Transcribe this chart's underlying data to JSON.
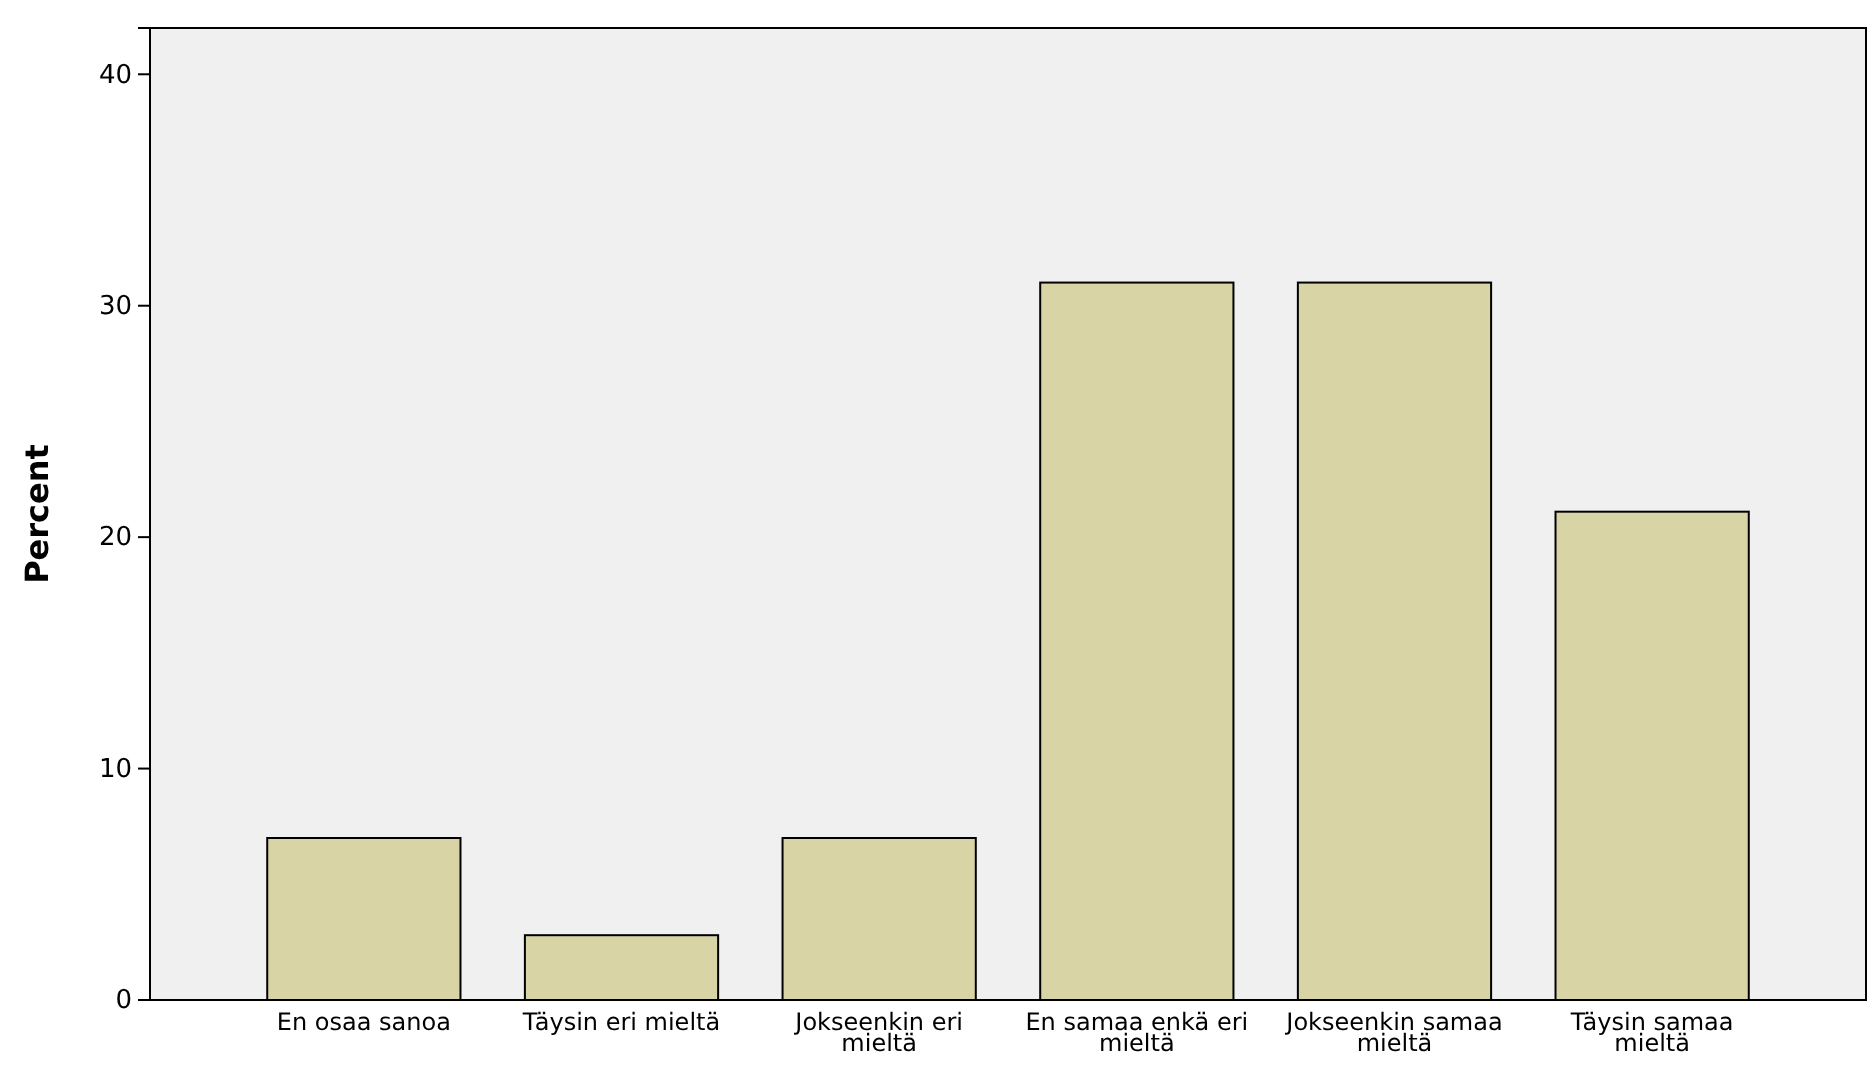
{
  "chart_data": {
    "type": "bar",
    "ylabel": "Percent",
    "categories": [
      "En osaa sanoa",
      "Täysin eri mieltä",
      "Jokseenkin eri mieltä",
      "En samaa enkä eri mieltä",
      "Jokseenkin samaa mieltä",
      "Täysin samaa mieltä"
    ],
    "values": [
      7.0,
      2.8,
      7.0,
      31.0,
      31.0,
      21.1
    ],
    "color": "#d9d4a6",
    "ylim": [
      0,
      42
    ],
    "yticks": [
      0,
      10,
      20,
      30,
      40
    ],
    "grid": false
  }
}
